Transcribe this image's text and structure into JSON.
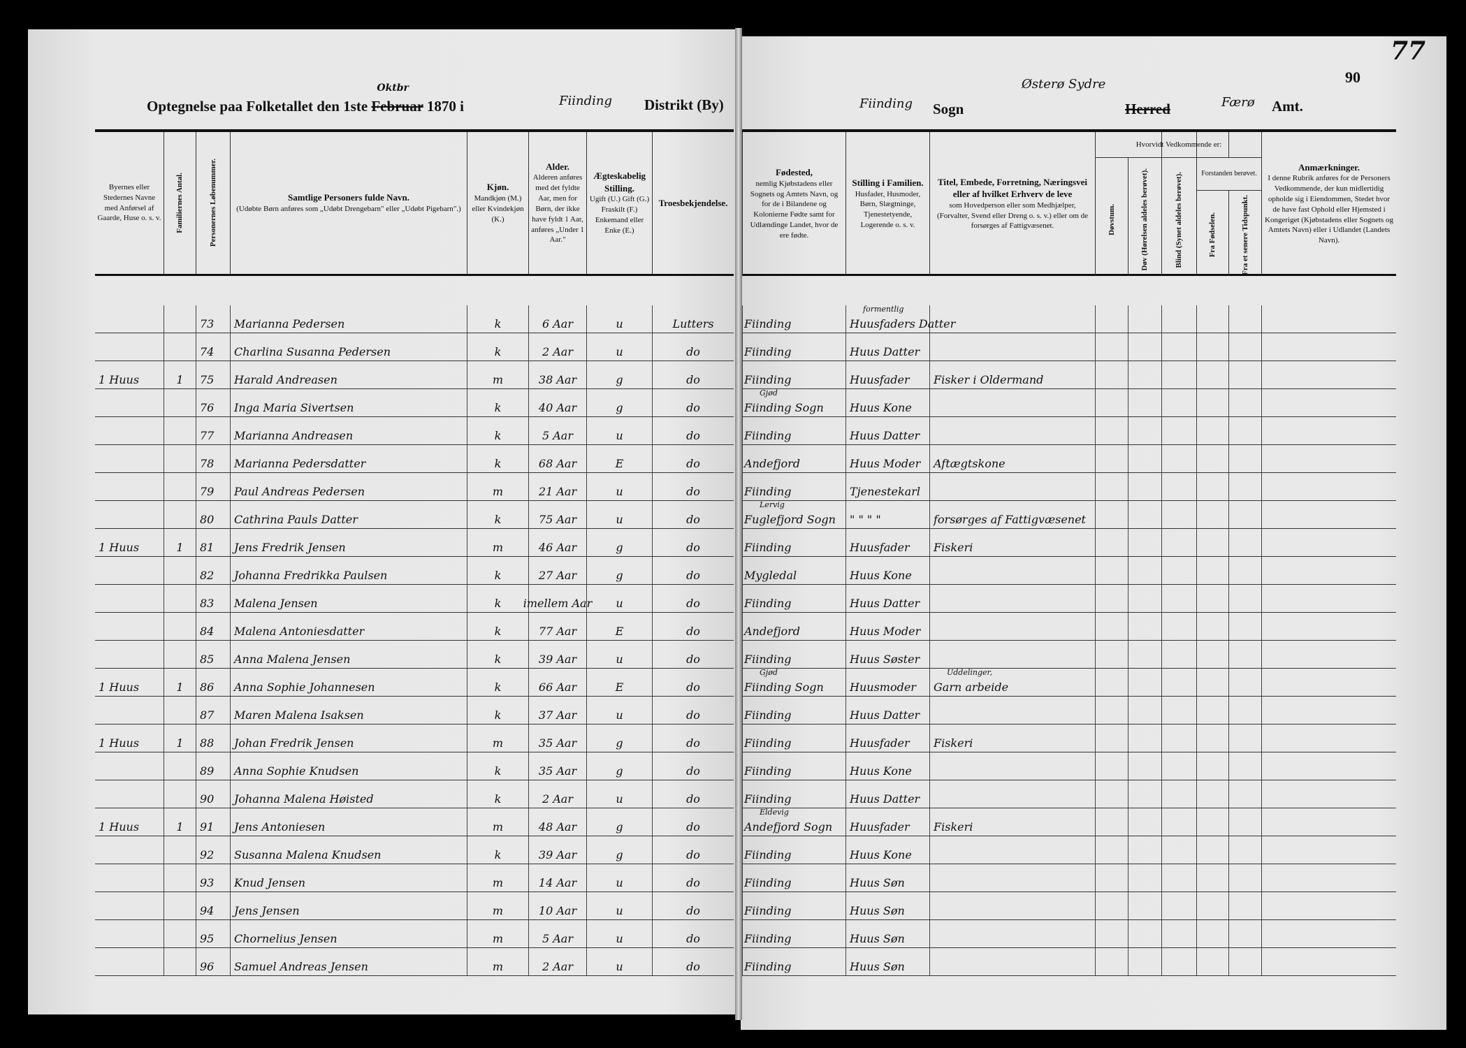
{
  "left_page": {
    "title": {
      "prefix": "Optegnelse paa Folketallet den 1ste",
      "month_struck": "Februar",
      "month_written": "Oktbr",
      "year": "1870 i",
      "place_written": "Fiinding",
      "suffix": "Distrikt (By)"
    },
    "headers": [
      {
        "title": "Byernes eller Stedernes Navne med Anførsel af Gaarde, Huse o. s. v.",
        "text": ""
      },
      {
        "title": "Familiernes Antal.",
        "text": ""
      },
      {
        "title": "Personernes Løbenummer.",
        "text": ""
      },
      {
        "title": "Samtlige Personers fulde Navn.",
        "text": "(Udøbte Børn anføres som „Udøbt Drengebarn\" eller „Udøbt Pigebarn\".)"
      },
      {
        "title": "Kjøn.",
        "text": "Mandkjøn (M.) eller Kvindekjøn (K.)"
      },
      {
        "title": "Alder.",
        "text": "Alderen anføres med det fyldte Aar, men for Børn, der ikke have fyldt 1 Aar, anføres „Under 1 Aar.\""
      },
      {
        "title": "Ægteskabelig Stilling.",
        "text": "Ugift (U.) Gift (G.) Fraskilt (F.) Enkemand eller Enke (E.)"
      },
      {
        "title": "Troesbekjendelse.",
        "text": ""
      }
    ]
  },
  "right_page": {
    "title": {
      "parish_written": "Fiinding",
      "parish_label": "Sogn",
      "district_written": "Østerø Sydre",
      "district_struck": "Herred",
      "county_written": "Færø",
      "county_label": "Amt."
    },
    "page_number": "90",
    "page_mark": "77",
    "headers": {
      "birthplace": {
        "title": "Fødested,",
        "text": "nemlig Kjøbstadens eller Sognets og Amtets Navn, og for de i Bilandene og Kolonierne Fødte samt for Udlændinge Landet, hvor de ere fødte."
      },
      "family_position": {
        "title": "Stilling i Familien.",
        "text": "Husfader, Husmoder, Børn, Slægtninge, Tjenestetyende, Logerende o. s. v."
      },
      "occupation": {
        "title": "Titel, Embede, Forretning, Næringsvei eller af hvilket Erhverv de leve",
        "text": "som Hovedperson eller som Medhjælper, (Forvalter, Svend eller Dreng o. s. v.) eller om de forsørges af Fattigvæsenet."
      },
      "disability_group": "Hvorvidt Vedkommende er:",
      "deaf_mute": "Døvstum.",
      "deaf": "Døv (Hørelsen aldeles berøvet).",
      "blind": "Blind (Synet aldeles berøvet).",
      "insane_group": "Forstanden berøvet.",
      "from_birth": "Fra Fødselen.",
      "later": "Fra et senere Tidspunkt.",
      "remarks": {
        "title": "Anmærkninger.",
        "text": "I denne Rubrik anføres for de Personers Vedkommende, der kun midlertidig opholde sig i Eiendommen, Stedet hvor de have fast Ophold eller Hjemsted i Kongeriget (Kjøbstadens eller Sognets og Amtets Navn) eller i Udlandet (Landets Navn)."
      }
    }
  },
  "rows": [
    {
      "place": "",
      "families": "",
      "no": "73",
      "name": "Marianna Pedersen",
      "sex": "k",
      "age": "6 Aar",
      "marital": "u",
      "faith": "Lutters",
      "birthplace": "Fiinding",
      "birth_note": "",
      "position": "Huusfaders Datter",
      "position_note": "formentlig",
      "occupation": ""
    },
    {
      "place": "",
      "families": "",
      "no": "74",
      "name": "Charlina Susanna Pedersen",
      "sex": "k",
      "age": "2 Aar",
      "marital": "u",
      "faith": "do",
      "birthplace": "Fiinding",
      "birth_note": "",
      "position": "Huus Datter",
      "position_note": "",
      "occupation": ""
    },
    {
      "place": "1 Huus",
      "families": "1",
      "no": "75",
      "name": "Harald Andreasen",
      "sex": "m",
      "age": "38 Aar",
      "marital": "g",
      "faith": "do",
      "birthplace": "Fiinding",
      "birth_note": "",
      "position": "Huusfader",
      "position_note": "",
      "occupation": "Fisker i Oldermand"
    },
    {
      "place": "",
      "families": "",
      "no": "76",
      "name": "Inga Maria Sivertsen",
      "sex": "k",
      "age": "40 Aar",
      "marital": "g",
      "faith": "do",
      "birthplace": "Fiinding Sogn",
      "birth_note": "Gjød",
      "position": "Huus Kone",
      "position_note": "",
      "occupation": ""
    },
    {
      "place": "",
      "families": "",
      "no": "77",
      "name": "Marianna Andreasen",
      "sex": "k",
      "age": "5 Aar",
      "marital": "u",
      "faith": "do",
      "birthplace": "Fiinding",
      "birth_note": "",
      "position": "Huus Datter",
      "position_note": "",
      "occupation": ""
    },
    {
      "place": "",
      "families": "",
      "no": "78",
      "name": "Marianna Pedersdatter",
      "sex": "k",
      "age": "68 Aar",
      "marital": "E",
      "faith": "do",
      "birthplace": "Andefjord",
      "birth_note": "",
      "position": "Huus Moder",
      "position_note": "",
      "occupation": "Aftægtskone"
    },
    {
      "place": "",
      "families": "",
      "no": "79",
      "name": "Paul Andreas Pedersen",
      "sex": "m",
      "age": "21 Aar",
      "marital": "u",
      "faith": "do",
      "birthplace": "Fiinding",
      "birth_note": "",
      "position": "Tjenestekarl",
      "position_note": "",
      "occupation": ""
    },
    {
      "place": "",
      "families": "",
      "no": "80",
      "name": "Cathrina Pauls Datter",
      "sex": "k",
      "age": "75 Aar",
      "marital": "u",
      "faith": "do",
      "birthplace": "Fuglefjord Sogn",
      "birth_note": "Lervig",
      "position": "\" \" \" \"",
      "position_note": "",
      "occupation": "forsørges af Fattigvæsenet"
    },
    {
      "place": "1 Huus",
      "families": "1",
      "no": "81",
      "name": "Jens Fredrik Jensen",
      "sex": "m",
      "age": "46 Aar",
      "marital": "g",
      "faith": "do",
      "birthplace": "Fiinding",
      "birth_note": "",
      "position": "Huusfader",
      "position_note": "",
      "occupation": "Fiskeri"
    },
    {
      "place": "",
      "families": "",
      "no": "82",
      "name": "Johanna Fredrikka Paulsen",
      "sex": "k",
      "age": "27 Aar",
      "marital": "g",
      "faith": "do",
      "birthplace": "Mygledal",
      "birth_note": "",
      "position": "Huus Kone",
      "position_note": "",
      "occupation": ""
    },
    {
      "place": "",
      "families": "",
      "no": "83",
      "name": "Malena Jensen",
      "sex": "k",
      "age": "imellem Aar",
      "marital": "u",
      "faith": "do",
      "birthplace": "Fiinding",
      "birth_note": "",
      "position": "Huus Datter",
      "position_note": "",
      "occupation": ""
    },
    {
      "place": "",
      "families": "",
      "no": "84",
      "name": "Malena Antoniesdatter",
      "sex": "k",
      "age": "77 Aar",
      "marital": "E",
      "faith": "do",
      "birthplace": "Andefjord",
      "birth_note": "",
      "position": "Huus Moder",
      "position_note": "",
      "occupation": ""
    },
    {
      "place": "",
      "families": "",
      "no": "85",
      "name": "Anna Malena Jensen",
      "sex": "k",
      "age": "39 Aar",
      "marital": "u",
      "faith": "do",
      "birthplace": "Fiinding",
      "birth_note": "",
      "position": "Huus Søster",
      "position_note": "",
      "occupation": ""
    },
    {
      "place": "1 Huus",
      "families": "1",
      "no": "86",
      "name": "Anna Sophie Johannesen",
      "sex": "k",
      "age": "66 Aar",
      "marital": "E",
      "faith": "do",
      "birthplace": "Fiinding Sogn",
      "birth_note": "Gjød",
      "position": "Huusmoder",
      "position_note": "",
      "occupation": "Garn arbeide",
      "occupation_note": "Uddelinger,"
    },
    {
      "place": "",
      "families": "",
      "no": "87",
      "name": "Maren Malena Isaksen",
      "sex": "k",
      "age": "37 Aar",
      "marital": "u",
      "faith": "do",
      "birthplace": "Fiinding",
      "birth_note": "",
      "position": "Huus Datter",
      "position_note": "",
      "occupation": ""
    },
    {
      "place": "1 Huus",
      "families": "1",
      "no": "88",
      "name": "Johan Fredrik Jensen",
      "sex": "m",
      "age": "35 Aar",
      "marital": "g",
      "faith": "do",
      "birthplace": "Fiinding",
      "birth_note": "",
      "position": "Huusfader",
      "position_note": "",
      "occupation": "Fiskeri"
    },
    {
      "place": "",
      "families": "",
      "no": "89",
      "name": "Anna Sophie Knudsen",
      "sex": "k",
      "age": "35 Aar",
      "marital": "g",
      "faith": "do",
      "birthplace": "Fiinding",
      "birth_note": "",
      "position": "Huus Kone",
      "position_note": "",
      "occupation": ""
    },
    {
      "place": "",
      "families": "",
      "no": "90",
      "name": "Johanna Malena Høisted",
      "sex": "k",
      "age": "2 Aar",
      "marital": "u",
      "faith": "do",
      "birthplace": "Fiinding",
      "birth_note": "",
      "position": "Huus Datter",
      "position_note": "",
      "occupation": ""
    },
    {
      "place": "1 Huus",
      "families": "1",
      "no": "91",
      "name": "Jens Antoniesen",
      "sex": "m",
      "age": "48 Aar",
      "marital": "g",
      "faith": "do",
      "birthplace": "Andefjord Sogn",
      "birth_note": "Eldevig",
      "position": "Huusfader",
      "position_note": "",
      "occupation": "Fiskeri"
    },
    {
      "place": "",
      "families": "",
      "no": "92",
      "name": "Susanna Malena Knudsen",
      "sex": "k",
      "age": "39 Aar",
      "marital": "g",
      "faith": "do",
      "birthplace": "Fiinding",
      "birth_note": "",
      "position": "Huus Kone",
      "position_note": "",
      "occupation": ""
    },
    {
      "place": "",
      "families": "",
      "no": "93",
      "name": "Knud Jensen",
      "sex": "m",
      "age": "14 Aar",
      "marital": "u",
      "faith": "do",
      "birthplace": "Fiinding",
      "birth_note": "",
      "position": "Huus Søn",
      "position_note": "",
      "occupation": ""
    },
    {
      "place": "",
      "families": "",
      "no": "94",
      "name": "Jens Jensen",
      "sex": "m",
      "age": "10 Aar",
      "marital": "u",
      "faith": "do",
      "birthplace": "Fiinding",
      "birth_note": "",
      "position": "Huus Søn",
      "position_note": "",
      "occupation": ""
    },
    {
      "place": "",
      "families": "",
      "no": "95",
      "name": "Chornelius Jensen",
      "sex": "m",
      "age": "5 Aar",
      "marital": "u",
      "faith": "do",
      "birthplace": "Fiinding",
      "birth_note": "",
      "position": "Huus Søn",
      "position_note": "",
      "occupation": ""
    },
    {
      "place": "",
      "families": "",
      "no": "96",
      "name": "Samuel Andreas Jensen",
      "sex": "m",
      "age": "2 Aar",
      "marital": "u",
      "faith": "do",
      "birthplace": "Fiinding",
      "birth_note": "",
      "position": "Huus Søn",
      "position_note": "",
      "occupation": ""
    }
  ]
}
